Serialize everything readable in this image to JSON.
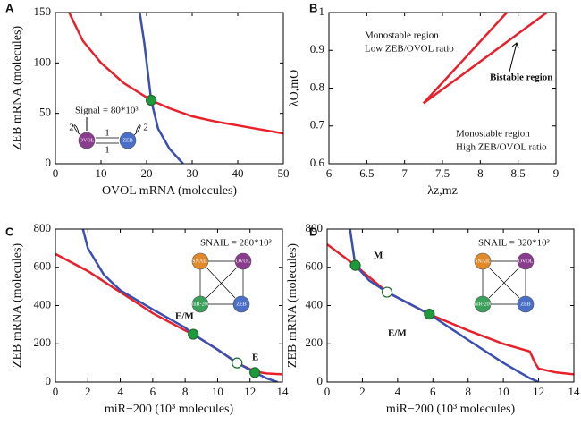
{
  "chart_data": [
    {
      "type": "line",
      "panel_label": "A",
      "xlabel": "OVOL mRNA (molecules)",
      "ylabel": "ZEB mRNA (molecules)",
      "xlim": [
        0,
        50
      ],
      "xticks": [
        0,
        10,
        20,
        30,
        40,
        50
      ],
      "ylim": [
        0,
        150
      ],
      "yticks": [
        0,
        50,
        100,
        150
      ],
      "series": [
        {
          "color": "#e8202a",
          "x": [
            3,
            6,
            10,
            15,
            21,
            25,
            30,
            35,
            40,
            45,
            50
          ],
          "values": [
            150,
            122,
            100,
            80,
            63,
            55,
            47,
            42,
            38,
            34,
            30
          ]
        },
        {
          "color": "#3a4fb0",
          "x": [
            18.5,
            19.5,
            20.3,
            21,
            22.5,
            25,
            28
          ],
          "values": [
            150,
            120,
            90,
            63,
            35,
            15,
            0
          ]
        }
      ],
      "points": [
        {
          "x": 21,
          "y": 63,
          "stable": true
        }
      ],
      "annotations": [
        "Signal = 80*10³"
      ],
      "inset_labels": [
        "OVOL",
        "ZEB",
        "2",
        "1",
        "1",
        "2"
      ]
    },
    {
      "type": "line",
      "panel_label": "B",
      "xlabel": "λz,mz",
      "ylabel": "λO,mO",
      "xlim": [
        6,
        9
      ],
      "xticks": [
        6,
        6.5,
        7,
        7.5,
        8,
        8.5,
        9
      ],
      "ylim": [
        0.6,
        1
      ],
      "yticks": [
        0.6,
        0.7,
        0.8,
        0.9,
        1
      ],
      "series": [
        {
          "color": "#e8202a",
          "x": [
            7.25,
            8.35
          ],
          "values": [
            0.76,
            1
          ]
        },
        {
          "color": "#e8202a",
          "x": [
            7.25,
            8.88
          ],
          "values": [
            0.76,
            1
          ]
        }
      ],
      "points": [],
      "annotations": [
        "Monostable region",
        "Low ZEB/OVOL ratio",
        "Bistable region",
        "Monostable region",
        "High ZEB/OVOL ratio"
      ],
      "inset_labels": []
    },
    {
      "type": "line",
      "panel_label": "C",
      "xlabel": "miR−200 (10³ molecules)",
      "ylabel": "ZEB mRNA (molecules)",
      "xlim": [
        0,
        14
      ],
      "xticks": [
        0,
        2,
        4,
        6,
        8,
        10,
        12,
        14
      ],
      "ylim": [
        0,
        800
      ],
      "yticks": [
        0,
        200,
        400,
        600,
        800
      ],
      "series": [
        {
          "color": "#e8202a",
          "x": [
            0,
            2,
            4,
            6,
            8,
            8.5,
            10,
            11.2,
            12.3,
            13,
            14
          ],
          "values": [
            670,
            580,
            470,
            360,
            270,
            250,
            170,
            100,
            55,
            45,
            40
          ]
        },
        {
          "color": "#3a4fb0",
          "x": [
            1.7,
            2,
            3,
            4,
            6,
            8,
            8.5,
            10,
            11.2,
            12.3,
            13,
            13.7
          ],
          "values": [
            800,
            700,
            560,
            480,
            380,
            285,
            250,
            170,
            100,
            50,
            20,
            0
          ]
        }
      ],
      "points": [
        {
          "x": 8.5,
          "y": 250,
          "stable": true
        },
        {
          "x": 11.2,
          "y": 100,
          "stable": false
        },
        {
          "x": 12.3,
          "y": 50,
          "stable": true
        }
      ],
      "annotations": [
        "SNAIL = 280*10³",
        "E/M",
        "E"
      ],
      "inset_labels": [
        "SNAIL",
        "OVOL",
        "miR-200",
        "ZEB"
      ]
    },
    {
      "type": "line",
      "panel_label": "D",
      "xlabel": "miR−200 (10³ molecules)",
      "ylabel": "ZEB mRNA (molecules)",
      "xlim": [
        0,
        14
      ],
      "xticks": [
        0,
        2,
        4,
        6,
        8,
        10,
        12,
        14
      ],
      "ylim": [
        0,
        800
      ],
      "yticks": [
        0,
        200,
        400,
        600,
        800
      ],
      "series": [
        {
          "color": "#e8202a",
          "x": [
            0,
            1.6,
            3.4,
            5.8,
            8,
            10,
            11.5,
            11.8,
            12,
            13,
            14
          ],
          "values": [
            720,
            610,
            470,
            355,
            270,
            200,
            160,
            100,
            70,
            50,
            40
          ]
        },
        {
          "color": "#3a4fb0",
          "x": [
            1.3,
            1.6,
            2.4,
            3.4,
            5.8,
            8,
            10,
            11.5,
            12
          ],
          "values": [
            800,
            610,
            530,
            470,
            355,
            220,
            100,
            20,
            0
          ]
        }
      ],
      "points": [
        {
          "x": 1.6,
          "y": 610,
          "stable": true
        },
        {
          "x": 3.4,
          "y": 470,
          "stable": false
        },
        {
          "x": 5.8,
          "y": 355,
          "stable": true
        }
      ],
      "annotations": [
        "SNAIL = 320*10³",
        "M",
        "E/M"
      ],
      "inset_labels": [
        "SNAIL",
        "OVOL",
        "miR-200",
        "ZEB"
      ]
    }
  ]
}
